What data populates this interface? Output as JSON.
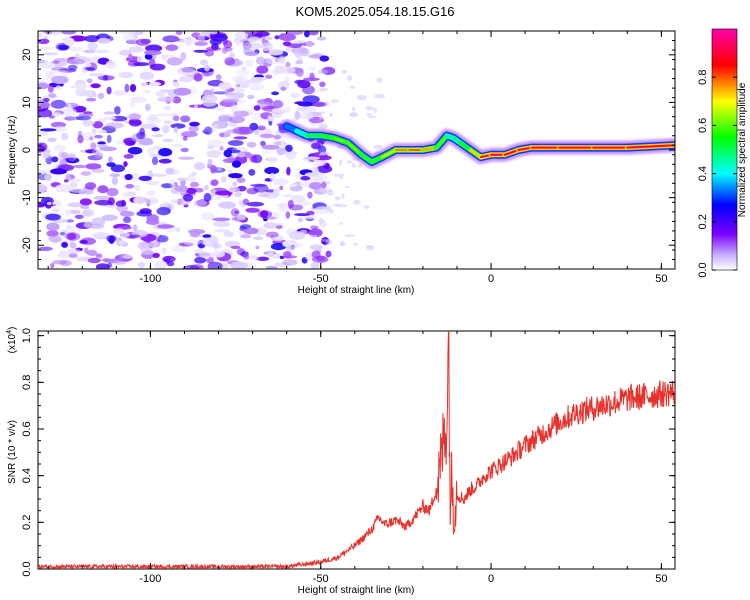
{
  "title": "KOM5.2025.054.18.15.G16",
  "chart_data": [
    {
      "type": "heatmap",
      "name": "spectrogram",
      "xlabel": "Height of straight line (km)",
      "ylabel": "Frequency (Hz)",
      "xlim": [
        -133,
        54
      ],
      "ylim": [
        -25,
        25
      ],
      "xticks": [
        -100,
        -50,
        0,
        50
      ],
      "yticks": [
        -20,
        -10,
        0,
        10,
        20
      ],
      "colorbar": {
        "label": "Normalized spectral amplitude",
        "range": [
          0,
          1
        ],
        "ticks": [
          "0.0",
          "0.2",
          "0.4",
          "0.6",
          "0.8"
        ],
        "colors": [
          "#ffffff",
          "#7b00ff",
          "#0000ff",
          "#00ffff",
          "#00ff00",
          "#ffff00",
          "#ff0000",
          "#ff00aa"
        ]
      },
      "noise_region_x": [
        -133,
        -50
      ],
      "ridge": {
        "x": [
          -60,
          -57,
          -54,
          -50,
          -46,
          -42,
          -38,
          -35,
          -32,
          -28,
          -24,
          -20,
          -16,
          -13,
          -11,
          -9,
          -6,
          -3,
          0,
          4,
          8,
          12,
          20,
          30,
          40,
          54
        ],
        "y": [
          5,
          4,
          3,
          3,
          2.5,
          1.5,
          -1,
          -2.5,
          -1.5,
          0,
          0,
          0,
          0.5,
          3,
          2.5,
          1.5,
          0,
          -1.5,
          -1,
          -1,
          0,
          0.5,
          0.5,
          0.5,
          0.5,
          1
        ],
        "amplitude": [
          0.25,
          0.4,
          0.5,
          0.55,
          0.6,
          0.65,
          0.6,
          0.55,
          0.6,
          0.75,
          0.8,
          0.8,
          0.7,
          0.5,
          0.45,
          0.5,
          0.6,
          0.85,
          0.9,
          0.9,
          0.9,
          0.9,
          0.9,
          0.9,
          0.9,
          0.9
        ]
      }
    },
    {
      "type": "line",
      "name": "snr",
      "xlabel": "Height of straight line (km)",
      "ylabel": "SNR (10 * v/v)",
      "yscale_label": "(x10",
      "yscale_exp": "4",
      "xlim": [
        -133,
        54
      ],
      "ylim": [
        0,
        1.02
      ],
      "xticks": [
        -100,
        -50,
        0,
        50
      ],
      "yticks": [
        "0.0",
        "0.2",
        "0.4",
        "0.6",
        "0.8",
        "1.0"
      ],
      "color": "#e8302a",
      "series": [
        {
          "x": [
            -133,
            -60,
            -55,
            -50,
            -45,
            -40,
            -37,
            -35,
            -33,
            -31,
            -28,
            -25,
            -22,
            -20,
            -18,
            -16,
            -15,
            -14,
            -13,
            -12.5,
            -12,
            -11.5,
            -11,
            -10,
            -8,
            -6,
            -4,
            -2,
            0,
            3,
            6,
            10,
            15,
            20,
            25,
            30,
            35,
            40,
            45,
            50,
            54
          ],
          "y": [
            0.01,
            0.01,
            0.02,
            0.03,
            0.05,
            0.1,
            0.14,
            0.17,
            0.22,
            0.19,
            0.21,
            0.18,
            0.23,
            0.27,
            0.25,
            0.35,
            0.42,
            0.55,
            0.62,
            1.0,
            0.3,
            0.38,
            0.28,
            0.32,
            0.3,
            0.34,
            0.36,
            0.4,
            0.42,
            0.45,
            0.48,
            0.53,
            0.58,
            0.63,
            0.67,
            0.69,
            0.71,
            0.73,
            0.74,
            0.75,
            0.76
          ]
        }
      ]
    }
  ]
}
